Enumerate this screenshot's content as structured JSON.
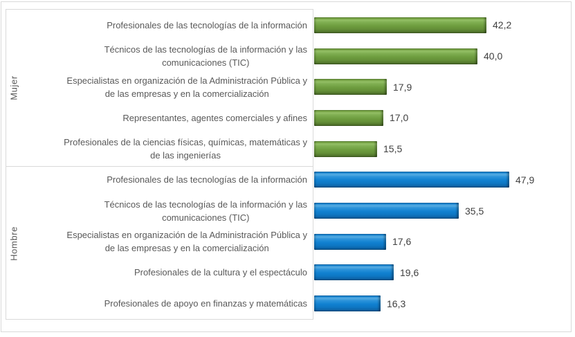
{
  "chart_data": {
    "type": "bar",
    "orientation": "horizontal",
    "title": "",
    "xlabel": "",
    "ylabel": "",
    "xlim": [
      0,
      62
    ],
    "grid": false,
    "legend": false,
    "decimal_style": "comma",
    "text_color": "#595959",
    "value_text_color": "#404040",
    "border_color": "#d9d9d9",
    "groups": [
      {
        "name": "Mujer",
        "bar_color": "#6d9c3e",
        "items": [
          {
            "label": "Profesionales de las tecnologías de la información",
            "value": 42.2,
            "value_label": "42,2"
          },
          {
            "label": "Técnicos de las tecnologías de la información y las\ncomunicaciones (TIC)",
            "value": 40.0,
            "value_label": "40,0"
          },
          {
            "label": "Especialistas en organización de la Administración Pública y\nde las empresas y en la comercialización",
            "value": 17.9,
            "value_label": "17,9"
          },
          {
            "label": "Representantes, agentes comerciales y afines",
            "value": 17.0,
            "value_label": "17,0"
          },
          {
            "label": "Profesionales de la ciencias físicas, químicas, matemáticas y\nde las ingenierías",
            "value": 15.5,
            "value_label": "15,5"
          }
        ]
      },
      {
        "name": "Hombre",
        "bar_color": "#1080d0",
        "items": [
          {
            "label": "Profesionales de las tecnologías de la información",
            "value": 47.9,
            "value_label": "47,9"
          },
          {
            "label": "Técnicos de las tecnologías de la información y las\ncomunicaciones (TIC)",
            "value": 35.5,
            "value_label": "35,5"
          },
          {
            "label": "Especialistas en organización de la Administración Pública y\nde las empresas y en la comercialización",
            "value": 17.6,
            "value_label": "17,6"
          },
          {
            "label": "Profesionales de la cultura y el espectáculo",
            "value": 19.6,
            "value_label": "19,6"
          },
          {
            "label": "Profesionales de apoyo en finanzas y matemáticas",
            "value": 16.3,
            "value_label": "16,3"
          }
        ]
      }
    ]
  }
}
